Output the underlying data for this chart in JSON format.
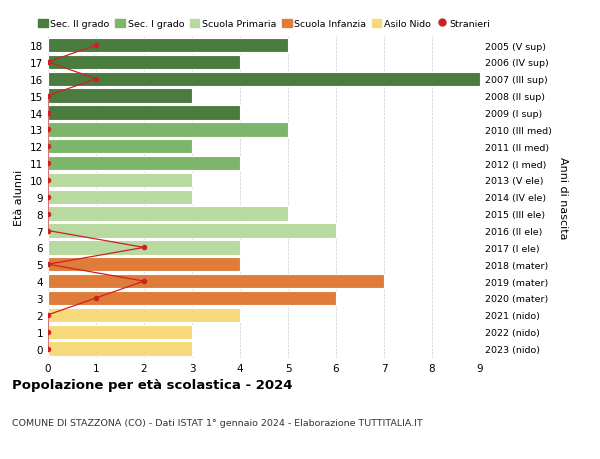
{
  "ages": [
    18,
    17,
    16,
    15,
    14,
    13,
    12,
    11,
    10,
    9,
    8,
    7,
    6,
    5,
    4,
    3,
    2,
    1,
    0
  ],
  "right_labels": [
    "2005 (V sup)",
    "2006 (IV sup)",
    "2007 (III sup)",
    "2008 (II sup)",
    "2009 (I sup)",
    "2010 (III med)",
    "2011 (II med)",
    "2012 (I med)",
    "2013 (V ele)",
    "2014 (IV ele)",
    "2015 (III ele)",
    "2016 (II ele)",
    "2017 (I ele)",
    "2018 (mater)",
    "2019 (mater)",
    "2020 (mater)",
    "2021 (nido)",
    "2022 (nido)",
    "2023 (nido)"
  ],
  "bar_values": [
    5,
    4,
    9,
    3,
    4,
    5,
    3,
    4,
    3,
    3,
    5,
    6,
    4,
    4,
    7,
    6,
    4,
    3,
    3
  ],
  "bar_colors": [
    "#4a7c40",
    "#4a7c40",
    "#4a7c40",
    "#4a7c40",
    "#4a7c40",
    "#7db56a",
    "#7db56a",
    "#7db56a",
    "#b8d9a0",
    "#b8d9a0",
    "#b8d9a0",
    "#b8d9a0",
    "#b8d9a0",
    "#e07c3a",
    "#e07c3a",
    "#e07c3a",
    "#f5d97a",
    "#f5d97a",
    "#f5d97a"
  ],
  "stranieri_values": [
    1,
    0,
    1,
    0,
    0,
    0,
    0,
    0,
    0,
    0,
    0,
    0,
    2,
    0,
    2,
    1,
    0,
    0,
    0
  ],
  "stranieri_color": "#cc2222",
  "legend_labels": [
    "Sec. II grado",
    "Sec. I grado",
    "Scuola Primaria",
    "Scuola Infanzia",
    "Asilo Nido",
    "Stranieri"
  ],
  "legend_colors": [
    "#4a7c40",
    "#7db56a",
    "#b8d9a0",
    "#e07c3a",
    "#f5d97a",
    "#cc2222"
  ],
  "title": "Popolazione per età scolastica - 2024",
  "subtitle": "COMUNE DI STAZZONA (CO) - Dati ISTAT 1° gennaio 2024 - Elaborazione TUTTITALIA.IT",
  "ylabel_left": "Età alunni",
  "ylabel_right": "Anni di nascita",
  "xlim": [
    0,
    9
  ],
  "bg_color": "#ffffff",
  "grid_color": "#cccccc",
  "bar_height": 0.85
}
